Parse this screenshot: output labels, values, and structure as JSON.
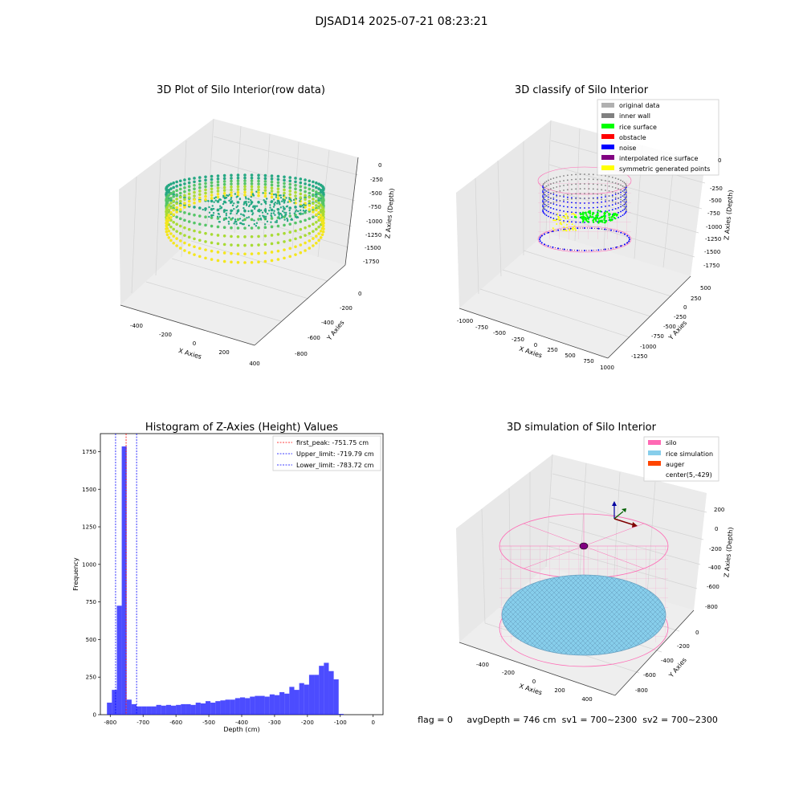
{
  "suptitle": "DJSAD14 2025-07-21 08:23:21",
  "footer_text": "flag = 0     avgDepth = 746 cm  sv1 = 700~2300  sv2 = 700~2300",
  "chart_data": [
    {
      "id": "raw",
      "type": "scatter",
      "title": "3D Plot of Silo Interior(row data)",
      "xlabel": "X Axies",
      "ylabel": "Y Axies",
      "zlabel": "Z Axies (Depth)",
      "x_ticks": [
        "-400",
        "-200",
        "0",
        "200",
        "400"
      ],
      "y_ticks": [
        "0",
        "-200",
        "-400",
        "-600",
        "-800"
      ],
      "z_ticks": [
        "0",
        "-250",
        "-500",
        "-750",
        "-1000",
        "-1250",
        "-1500",
        "-1750"
      ],
      "colormap": [
        "#26a883",
        "#55c567",
        "#a8db34",
        "#f4e61e"
      ]
    },
    {
      "id": "classify",
      "type": "scatter",
      "title": "3D classify of Silo Interior",
      "xlabel": "X Axies",
      "ylabel": "Y Axies",
      "zlabel": "Z Axies (Depth)",
      "x_ticks": [
        "-1000",
        "-750",
        "-500",
        "-250",
        "0",
        "250",
        "500",
        "750",
        "1000"
      ],
      "y_ticks": [
        "500",
        "250",
        "0",
        "-250",
        "-500",
        "-750",
        "-1000",
        "-1250"
      ],
      "z_ticks": [
        "0",
        "-250",
        "-500",
        "-750",
        "-1000",
        "-1250",
        "-1500",
        "-1750"
      ],
      "legend": [
        {
          "label": "original data",
          "color": "#b0b0b0"
        },
        {
          "label": "inner wall",
          "color": "#808080"
        },
        {
          "label": "rice surface",
          "color": "#00ff00"
        },
        {
          "label": "obstacle",
          "color": "#ff0000"
        },
        {
          "label": "noise",
          "color": "#0000ff"
        },
        {
          "label": "interpolated rice surface",
          "color": "#800080"
        },
        {
          "label": "symmetric generated points",
          "color": "#ffff00"
        }
      ]
    },
    {
      "id": "hist",
      "type": "bar",
      "title": "Histogram of Z-Axies (Height) Values",
      "xlabel": "Depth (cm)",
      "ylabel": "Frequency",
      "xlim": [
        -830,
        30
      ],
      "ylim": [
        0,
        1870
      ],
      "x_ticks": [
        -800,
        -700,
        -600,
        -500,
        -400,
        -300,
        -200,
        -100,
        0
      ],
      "y_ticks": [
        0,
        250,
        500,
        750,
        1000,
        1250,
        1500,
        1750
      ],
      "bar_color": "#0000ff",
      "bin_start": -810,
      "bin_width": 15,
      "values": [
        80,
        165,
        725,
        1785,
        100,
        70,
        55,
        55,
        55,
        55,
        65,
        60,
        65,
        60,
        65,
        70,
        70,
        65,
        80,
        75,
        90,
        80,
        90,
        95,
        100,
        100,
        110,
        115,
        110,
        120,
        125,
        125,
        120,
        135,
        130,
        150,
        140,
        185,
        165,
        210,
        200,
        265,
        265,
        325,
        345,
        290,
        235,
        5
      ],
      "vlines": [
        {
          "x": -751.75,
          "label": "first_peak: -751.75 cm",
          "color": "#ff0000"
        },
        {
          "x": -719.79,
          "label": "Upper_limit: -719.79 cm",
          "color": "#0000ff"
        },
        {
          "x": -783.72,
          "label": "Lower_limit: -783.72 cm",
          "color": "#0000ff"
        }
      ]
    },
    {
      "id": "sim",
      "type": "surface",
      "title": "3D simulation of Silo Interior",
      "xlabel": "X Axies",
      "ylabel": "Y Axies",
      "zlabel": "Z Axies (Depth)",
      "x_ticks": [
        "-400",
        "-200",
        "0",
        "200",
        "400"
      ],
      "y_ticks": [
        "0",
        "-200",
        "-400",
        "-600",
        "-800"
      ],
      "z_ticks": [
        "200",
        "0",
        "-200",
        "-400",
        "-600",
        "-800"
      ],
      "legend": [
        {
          "label": "silo",
          "color": "#ff69b4"
        },
        {
          "label": "rice simulation",
          "color": "#87ceeb"
        },
        {
          "label": "auger",
          "color": "#ff4500"
        },
        {
          "label": "center(5,-429)",
          "color": ""
        }
      ]
    }
  ]
}
